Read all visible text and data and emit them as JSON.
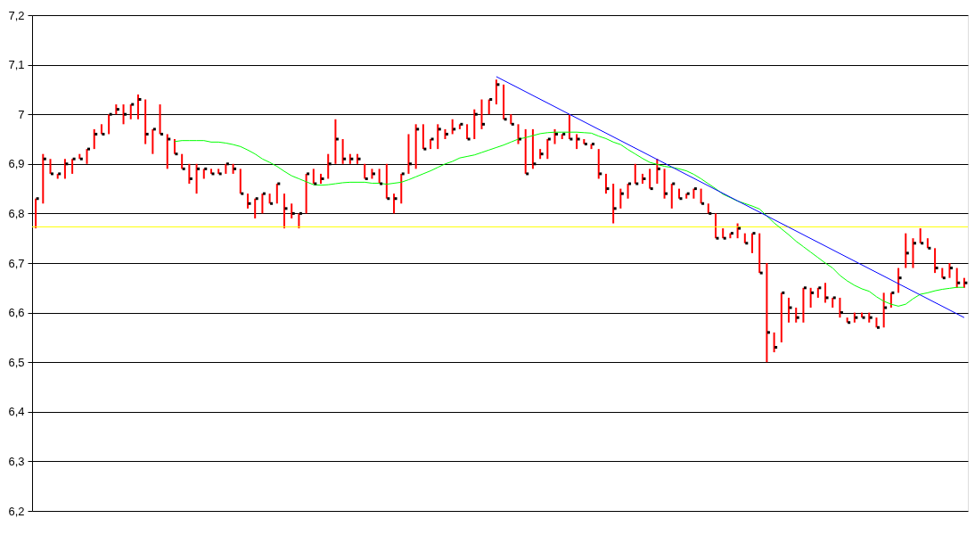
{
  "chart_data": {
    "type": "scatter",
    "categories": [
      null,
      null,
      null,
      null,
      null,
      null,
      null,
      null,
      null,
      null,
      null,
      null,
      null,
      null,
      null,
      null,
      null,
      null,
      null,
      null,
      null,
      null,
      null,
      null,
      null,
      null,
      null,
      null,
      null,
      null,
      null,
      null,
      null,
      null,
      null,
      null,
      null,
      null,
      null,
      null,
      null,
      null,
      null,
      null,
      null,
      null,
      null,
      null,
      null,
      null,
      null,
      null,
      null,
      null,
      null,
      null,
      null,
      null,
      null,
      null,
      null,
      null,
      null,
      null,
      null,
      null,
      null,
      null,
      null,
      null,
      null,
      null,
      null,
      null,
      null,
      null,
      null,
      null,
      null,
      null,
      null,
      null,
      null,
      null,
      null,
      null,
      null,
      null,
      null,
      null,
      null,
      null,
      null,
      null,
      null,
      null,
      null,
      null,
      null,
      null,
      null,
      null,
      null,
      null,
      null,
      null,
      null,
      null,
      null,
      null,
      null,
      null,
      null,
      null,
      null,
      null,
      null,
      null,
      null,
      null,
      null,
      null,
      null,
      null,
      null,
      null,
      null,
      null
    ],
    "series": [
      {
        "color": "#000000",
        "marker": "square",
        "values": [
          6.83,
          6.91,
          6.88,
          6.88,
          6.9,
          6.91,
          6.91,
          6.93,
          6.96,
          6.96,
          7.0,
          7.01,
          7.0,
          7.02,
          7.03,
          6.96,
          6.97,
          6.96,
          6.95,
          6.92,
          6.89,
          6.87,
          6.89,
          6.89,
          6.88,
          6.88,
          6.9,
          6.89,
          6.84,
          6.82,
          6.83,
          6.84,
          6.82,
          6.86,
          6.81,
          6.8,
          6.8,
          6.88,
          6.86,
          6.87,
          6.9,
          6.95,
          6.91,
          6.91,
          6.91,
          6.87,
          6.88,
          6.86,
          6.83,
          6.83,
          6.88,
          6.9,
          6.97,
          6.93,
          6.95,
          6.97,
          6.96,
          6.97,
          6.98,
          6.95,
          7.0,
          6.98,
          7.03,
          7.06,
          6.99,
          6.98,
          6.95,
          6.88,
          6.9,
          6.92,
          6.95,
          6.96,
          6.96,
          6.95,
          6.95,
          6.94,
          6.94,
          6.88,
          6.85,
          6.81,
          6.84,
          6.86,
          6.86,
          6.87,
          6.85,
          6.89,
          6.84,
          6.86,
          6.83,
          6.84,
          6.85,
          6.82,
          6.8,
          6.75,
          6.75,
          6.76,
          6.77,
          6.74,
          6.76,
          6.68,
          6.56,
          6.53,
          6.64,
          6.61,
          6.59,
          6.65,
          6.64,
          6.65,
          6.63,
          6.63,
          6.6,
          6.58,
          6.59,
          6.59,
          6.59,
          6.57,
          6.61,
          6.64,
          6.67,
          6.72,
          6.74,
          6.74,
          6.73,
          6.69,
          6.67,
          6.69,
          6.66,
          6.66
        ],
        "errors": [
          [
            6.77,
            6.83
          ],
          [
            6.82,
            6.92
          ],
          [
            6.88,
            6.91
          ],
          [
            6.87,
            6.88
          ],
          [
            6.87,
            6.91
          ],
          [
            6.88,
            6.91
          ],
          [
            6.91,
            6.92
          ],
          [
            6.9,
            6.93
          ],
          [
            6.93,
            6.97
          ],
          [
            6.96,
            6.98
          ],
          [
            6.96,
            7.0
          ],
          [
            7.0,
            7.02
          ],
          [
            6.98,
            7.02
          ],
          [
            6.99,
            7.02
          ],
          [
            6.99,
            7.04
          ],
          [
            6.94,
            7.03
          ],
          [
            6.92,
            6.97
          ],
          [
            6.96,
            7.02
          ],
          [
            6.89,
            6.96
          ],
          [
            6.92,
            6.95
          ],
          [
            6.89,
            6.92
          ],
          [
            6.86,
            6.9
          ],
          [
            6.84,
            6.9
          ],
          [
            6.87,
            6.89
          ],
          [
            6.88,
            6.89
          ],
          [
            6.88,
            6.89
          ],
          [
            6.88,
            6.9
          ],
          [
            6.88,
            6.9
          ],
          [
            6.84,
            6.89
          ],
          [
            6.81,
            6.84
          ],
          [
            6.79,
            6.83
          ],
          [
            6.8,
            6.84
          ],
          [
            6.82,
            6.84
          ],
          [
            6.82,
            6.86
          ],
          [
            6.77,
            6.84
          ],
          [
            6.79,
            6.82
          ],
          [
            6.77,
            6.8
          ],
          [
            6.8,
            6.88
          ],
          [
            6.86,
            6.89
          ],
          [
            6.86,
            6.88
          ],
          [
            6.87,
            6.92
          ],
          [
            6.9,
            6.99
          ],
          [
            6.9,
            6.95
          ],
          [
            6.9,
            6.92
          ],
          [
            6.9,
            6.92
          ],
          [
            6.87,
            6.9
          ],
          [
            6.87,
            6.89
          ],
          [
            6.86,
            6.89
          ],
          [
            6.83,
            6.9
          ],
          [
            6.8,
            6.84
          ],
          [
            6.82,
            6.88
          ],
          [
            6.88,
            6.96
          ],
          [
            6.89,
            6.98
          ],
          [
            6.93,
            6.98
          ],
          [
            6.93,
            6.95
          ],
          [
            6.93,
            6.98
          ],
          [
            6.95,
            6.97
          ],
          [
            6.96,
            6.99
          ],
          [
            6.97,
            6.98
          ],
          [
            6.95,
            6.98
          ],
          [
            6.95,
            7.01
          ],
          [
            6.97,
            7.03
          ],
          [
            7.0,
            7.03
          ],
          [
            7.02,
            7.07
          ],
          [
            6.99,
            7.06
          ],
          [
            6.98,
            7.0
          ],
          [
            6.94,
            6.98
          ],
          [
            6.88,
            6.97
          ],
          [
            6.89,
            6.97
          ],
          [
            6.91,
            6.93
          ],
          [
            6.91,
            6.95
          ],
          [
            6.94,
            6.97
          ],
          [
            6.95,
            6.96
          ],
          [
            6.95,
            7.0
          ],
          [
            6.93,
            6.96
          ],
          [
            6.94,
            6.95
          ],
          [
            6.93,
            6.94
          ],
          [
            6.87,
            6.93
          ],
          [
            6.84,
            6.88
          ],
          [
            6.78,
            6.86
          ],
          [
            6.81,
            6.85
          ],
          [
            6.83,
            6.86
          ],
          [
            6.86,
            6.9
          ],
          [
            6.86,
            6.88
          ],
          [
            6.85,
            6.89
          ],
          [
            6.86,
            6.91
          ],
          [
            6.83,
            6.89
          ],
          [
            6.81,
            6.86
          ],
          [
            6.83,
            6.85
          ],
          [
            6.83,
            6.84
          ],
          [
            6.83,
            6.85
          ],
          [
            6.82,
            6.85
          ],
          [
            6.8,
            6.82
          ],
          [
            6.75,
            6.8
          ],
          [
            6.75,
            6.77
          ],
          [
            6.75,
            6.76
          ],
          [
            6.75,
            6.78
          ],
          [
            6.74,
            6.76
          ],
          [
            6.72,
            6.76
          ],
          [
            6.68,
            6.76
          ],
          [
            6.5,
            6.7
          ],
          [
            6.52,
            6.56
          ],
          [
            6.54,
            6.64
          ],
          [
            6.58,
            6.63
          ],
          [
            6.58,
            6.61
          ],
          [
            6.58,
            6.65
          ],
          [
            6.61,
            6.65
          ],
          [
            6.63,
            6.65
          ],
          [
            6.62,
            6.66
          ],
          [
            6.61,
            6.63
          ],
          [
            6.59,
            6.63
          ],
          [
            6.58,
            6.59
          ],
          [
            6.58,
            6.6
          ],
          [
            6.59,
            6.6
          ],
          [
            6.58,
            6.6
          ],
          [
            6.57,
            6.59
          ],
          [
            6.57,
            6.64
          ],
          [
            6.61,
            6.64
          ],
          [
            6.64,
            6.69
          ],
          [
            6.69,
            6.76
          ],
          [
            6.69,
            6.75
          ],
          [
            6.74,
            6.77
          ],
          [
            6.73,
            6.75
          ],
          [
            6.68,
            6.73
          ],
          [
            6.67,
            6.69
          ],
          [
            6.67,
            6.7
          ],
          [
            6.65,
            6.69
          ],
          [
            6.65,
            6.67
          ]
        ]
      },
      {
        "type": "line",
        "color": "#00ff00",
        "values": [
          null,
          null,
          null,
          null,
          null,
          null,
          null,
          null,
          null,
          null,
          null,
          null,
          null,
          null,
          null,
          null,
          null,
          null,
          null,
          6.945,
          6.947,
          6.947,
          6.947,
          6.947,
          6.944,
          6.944,
          6.942,
          6.939,
          6.935,
          6.928,
          6.92,
          6.91,
          6.903,
          6.895,
          6.885,
          6.876,
          6.87,
          6.864,
          6.858,
          6.857,
          6.858,
          6.86,
          6.862,
          6.863,
          6.863,
          6.863,
          6.861,
          6.861,
          6.859,
          6.861,
          6.863,
          6.868,
          6.874,
          6.88,
          6.886,
          6.893,
          6.9,
          6.905,
          6.912,
          6.915,
          6.918,
          6.923,
          6.928,
          6.933,
          6.938,
          6.944,
          6.95,
          6.953,
          6.957,
          6.961,
          6.963,
          6.964,
          6.964,
          6.964,
          6.964,
          6.963,
          6.962,
          6.956,
          6.951,
          6.944,
          6.939,
          6.929,
          6.92,
          6.911,
          6.903,
          6.899,
          6.895,
          6.893,
          6.89,
          6.886,
          6.879,
          6.87,
          6.86,
          6.85,
          6.839,
          6.832,
          6.825,
          6.82,
          6.815,
          6.809,
          6.795,
          6.781,
          6.769,
          6.757,
          6.744,
          6.733,
          6.722,
          6.711,
          6.7,
          6.69,
          6.675,
          6.664,
          6.655,
          6.648,
          6.643,
          6.632,
          6.623,
          6.617,
          6.613,
          6.617,
          6.628,
          6.637,
          6.64,
          6.644,
          6.647,
          6.649,
          6.651,
          6.651
        ]
      },
      {
        "type": "line",
        "color": "#0000ff",
        "values": [
          null,
          null,
          null,
          null,
          null,
          null,
          null,
          null,
          null,
          null,
          null,
          null,
          null,
          null,
          null,
          null,
          null,
          null,
          null,
          null,
          null,
          null,
          null,
          null,
          null,
          null,
          null,
          null,
          null,
          null,
          null,
          null,
          null,
          null,
          null,
          null,
          null,
          null,
          null,
          null,
          null,
          null,
          null,
          null,
          null,
          null,
          null,
          null,
          null,
          null,
          null,
          null,
          null,
          null,
          null,
          null,
          null,
          null,
          null,
          null,
          null,
          null,
          null,
          7.076,
          null,
          null,
          null,
          null,
          null,
          null,
          null,
          null,
          null,
          null,
          null,
          null,
          null,
          null,
          null,
          null,
          null,
          null,
          null,
          null,
          null,
          null,
          null,
          null,
          null,
          null,
          null,
          null,
          null,
          null,
          null,
          null,
          null,
          null,
          null,
          null,
          null,
          null,
          null,
          null,
          null,
          null,
          null,
          null,
          null,
          null,
          null,
          null,
          null,
          null,
          null,
          null,
          null,
          null,
          null,
          null,
          null,
          null,
          null,
          null,
          null,
          null,
          null,
          6.59
        ]
      }
    ],
    "ref_lines": [
      {
        "axis": "y",
        "value": 6.773,
        "color": "#ffff00"
      }
    ],
    "ylim": [
      6.2,
      7.2
    ],
    "yticks": [
      {
        "value": 6.2,
        "label": "6,2"
      },
      {
        "value": 6.3,
        "label": "6,3"
      },
      {
        "value": 6.4,
        "label": "6,4"
      },
      {
        "value": 6.5,
        "label": "6,5"
      },
      {
        "value": 6.6,
        "label": "6,6"
      },
      {
        "value": 6.7,
        "label": "6,7"
      },
      {
        "value": 6.8,
        "label": "6,8"
      },
      {
        "value": 6.9,
        "label": "6,9"
      },
      7,
      {
        "value": 7.1,
        "label": "7,1"
      },
      {
        "value": 7.2,
        "label": "7,2"
      }
    ],
    "grid": "y",
    "tick_labels": "y"
  }
}
